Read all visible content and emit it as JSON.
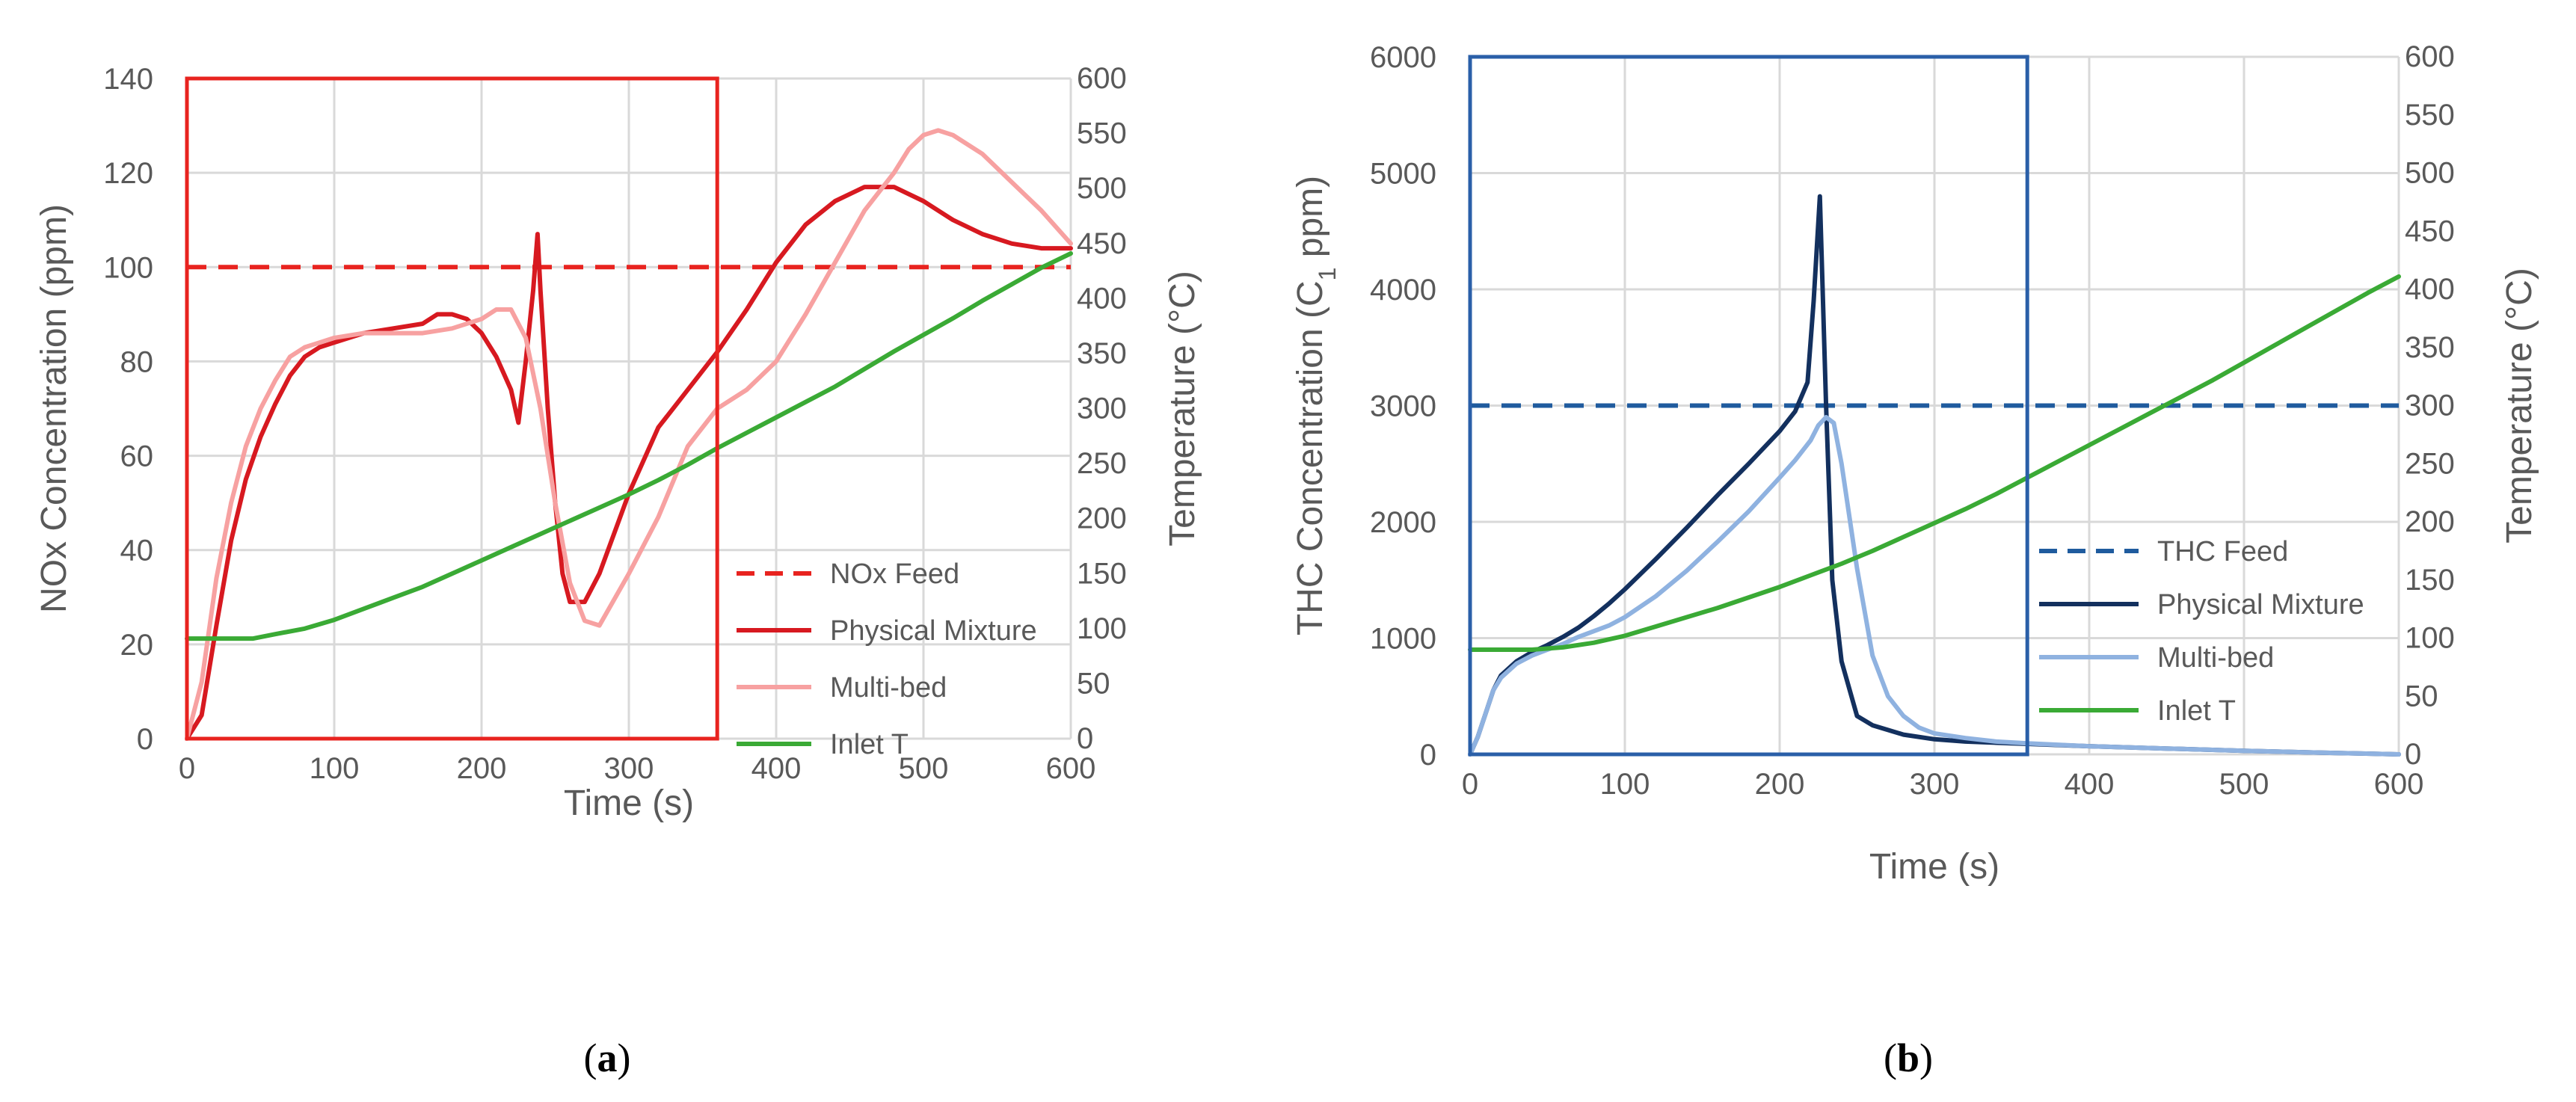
{
  "colors": {
    "nox_feed": "#e8231f",
    "nox_physical": "#d71920",
    "nox_multibed": "#f7a1a1",
    "thc_feed": "#1f5b9e",
    "thc_physical": "#13305e",
    "thc_multibed": "#8fb2e0",
    "inlet_t": "#3aaa35",
    "box_a": "#e8231f",
    "box_b": "#2a5fa8"
  },
  "chart_data": [
    {
      "type": "line",
      "panel_label": "a",
      "xlabel": "Time (s)",
      "ylabel_left": "NOx Concentration (ppm)",
      "ylabel_right": "Temperature (°C)",
      "xlim": [
        0,
        600
      ],
      "ylim_left": [
        0,
        140
      ],
      "ylim_right": [
        0,
        600
      ],
      "x_ticks": [
        "0",
        "100",
        "200",
        "300",
        "400",
        "500",
        "600"
      ],
      "y_ticks_left": [
        "0",
        "20",
        "40",
        "60",
        "80",
        "100",
        "120",
        "140"
      ],
      "y_ticks_right": [
        "0",
        "50",
        "100",
        "150",
        "200",
        "250",
        "300",
        "350",
        "400",
        "450",
        "500",
        "550",
        "600"
      ],
      "grid": true,
      "legend_position": "lower-right",
      "highlight_box_x": [
        0,
        360
      ],
      "series": [
        {
          "name": "NOx Feed",
          "axis": "left",
          "style": "dashed",
          "color_key": "nox_feed",
          "x": [
            0,
            600
          ],
          "y": [
            100,
            100
          ]
        },
        {
          "name": "Physical Mixture",
          "axis": "left",
          "style": "solid",
          "color_key": "nox_physical",
          "x": [
            0,
            10,
            20,
            30,
            40,
            50,
            60,
            70,
            80,
            90,
            100,
            120,
            140,
            160,
            170,
            180,
            190,
            200,
            210,
            220,
            225,
            230,
            235,
            238,
            240,
            245,
            250,
            255,
            260,
            270,
            280,
            300,
            320,
            340,
            360,
            380,
            400,
            420,
            440,
            460,
            480,
            500,
            520,
            540,
            560,
            580,
            600
          ],
          "y": [
            0,
            5,
            24,
            42,
            55,
            64,
            71,
            77,
            81,
            83,
            84,
            86,
            87,
            88,
            90,
            90,
            89,
            86,
            81,
            74,
            67,
            80,
            95,
            107,
            95,
            70,
            50,
            35,
            29,
            29,
            35,
            52,
            66,
            74,
            82,
            91,
            101,
            109,
            114,
            117,
            117,
            114,
            110,
            107,
            105,
            104,
            104
          ]
        },
        {
          "name": "Multi-bed",
          "axis": "left",
          "style": "solid",
          "color_key": "nox_multibed",
          "x": [
            0,
            10,
            20,
            30,
            40,
            50,
            60,
            70,
            80,
            90,
            100,
            120,
            140,
            160,
            180,
            200,
            210,
            220,
            230,
            240,
            250,
            260,
            270,
            280,
            300,
            320,
            340,
            360,
            380,
            400,
            420,
            440,
            460,
            480,
            490,
            500,
            510,
            520,
            540,
            560,
            580,
            600
          ],
          "y": [
            0,
            12,
            34,
            50,
            62,
            70,
            76,
            81,
            83,
            84,
            85,
            86,
            86,
            86,
            87,
            89,
            91,
            91,
            85,
            70,
            50,
            33,
            25,
            24,
            35,
            47,
            62,
            70,
            74,
            80,
            90,
            101,
            112,
            120,
            125,
            128,
            129,
            128,
            124,
            118,
            112,
            105
          ]
        },
        {
          "name": "Inlet T",
          "axis": "right",
          "style": "solid",
          "color_key": "inlet_t",
          "x": [
            0,
            20,
            45,
            60,
            80,
            100,
            120,
            140,
            160,
            180,
            200,
            220,
            240,
            260,
            280,
            300,
            320,
            340,
            360,
            380,
            400,
            420,
            440,
            460,
            480,
            500,
            520,
            540,
            560,
            580,
            600
          ],
          "y": [
            91,
            91,
            91,
            95,
            100,
            108,
            118,
            128,
            138,
            150,
            162,
            174,
            186,
            198,
            210,
            222,
            235,
            249,
            264,
            278,
            292,
            306,
            320,
            336,
            352,
            367,
            382,
            398,
            413,
            428,
            441
          ]
        }
      ]
    },
    {
      "type": "line",
      "panel_label": "b",
      "xlabel": "Time (s)",
      "ylabel_left": "THC Concentration (C1 ppm)",
      "ylabel_left_main": "THC Concentration (C",
      "ylabel_left_sub": "1",
      "ylabel_left_tail": " ppm)",
      "ylabel_right": "Temperature (°C)",
      "xlim": [
        0,
        600
      ],
      "ylim_left": [
        0,
        6000
      ],
      "ylim_right": [
        0,
        600
      ],
      "x_ticks": [
        "0",
        "100",
        "200",
        "300",
        "400",
        "500",
        "600"
      ],
      "y_ticks_left": [
        "0",
        "1000",
        "2000",
        "3000",
        "4000",
        "5000",
        "6000"
      ],
      "y_ticks_right": [
        "0",
        "50",
        "100",
        "150",
        "200",
        "250",
        "300",
        "350",
        "400",
        "450",
        "500",
        "550",
        "600"
      ],
      "grid": true,
      "legend_position": "lower-right",
      "highlight_box_x": [
        0,
        360
      ],
      "series": [
        {
          "name": "THC Feed",
          "axis": "left",
          "style": "dashed",
          "color_key": "thc_feed",
          "x": [
            0,
            600
          ],
          "y": [
            3000,
            3000
          ]
        },
        {
          "name": "Physical Mixture",
          "axis": "left",
          "style": "solid",
          "color_key": "thc_physical",
          "x": [
            0,
            5,
            10,
            15,
            20,
            30,
            40,
            50,
            60,
            70,
            80,
            90,
            100,
            120,
            140,
            160,
            180,
            200,
            210,
            218,
            222,
            226,
            230,
            234,
            240,
            250,
            260,
            280,
            300,
            320,
            340,
            360,
            400,
            450,
            500,
            550,
            600
          ],
          "y": [
            0,
            150,
            350,
            550,
            680,
            800,
            880,
            940,
            1010,
            1090,
            1190,
            1300,
            1420,
            1680,
            1950,
            2230,
            2500,
            2780,
            2950,
            3200,
            3900,
            4800,
            3000,
            1500,
            800,
            330,
            250,
            170,
            130,
            110,
            100,
            90,
            70,
            50,
            30,
            15,
            0
          ]
        },
        {
          "name": "Multi-bed",
          "axis": "left",
          "style": "solid",
          "color_key": "thc_multibed",
          "x": [
            0,
            5,
            10,
            15,
            20,
            30,
            40,
            50,
            60,
            70,
            80,
            90,
            100,
            120,
            140,
            160,
            180,
            200,
            210,
            220,
            225,
            230,
            235,
            240,
            250,
            260,
            270,
            280,
            290,
            300,
            320,
            340,
            360,
            400,
            450,
            500,
            550,
            600
          ],
          "y": [
            0,
            150,
            350,
            550,
            660,
            780,
            850,
            900,
            950,
            1010,
            1060,
            1110,
            1180,
            1360,
            1580,
            1830,
            2090,
            2380,
            2530,
            2700,
            2830,
            2900,
            2850,
            2500,
            1600,
            850,
            500,
            330,
            230,
            180,
            140,
            110,
            95,
            70,
            50,
            30,
            15,
            0
          ]
        },
        {
          "name": "Inlet T",
          "axis": "right",
          "style": "solid",
          "color_key": "inlet_t",
          "x": [
            0,
            20,
            40,
            60,
            80,
            100,
            120,
            140,
            160,
            180,
            200,
            220,
            240,
            260,
            280,
            300,
            320,
            340,
            360,
            380,
            400,
            420,
            440,
            460,
            480,
            500,
            520,
            540,
            560,
            580,
            600
          ],
          "y": [
            90,
            90,
            90,
            92,
            96,
            102,
            110,
            118,
            126,
            135,
            144,
            154,
            164,
            175,
            187,
            199,
            211,
            224,
            238,
            252,
            266,
            280,
            294,
            308,
            322,
            337,
            352,
            367,
            382,
            397,
            411
          ]
        }
      ]
    }
  ]
}
